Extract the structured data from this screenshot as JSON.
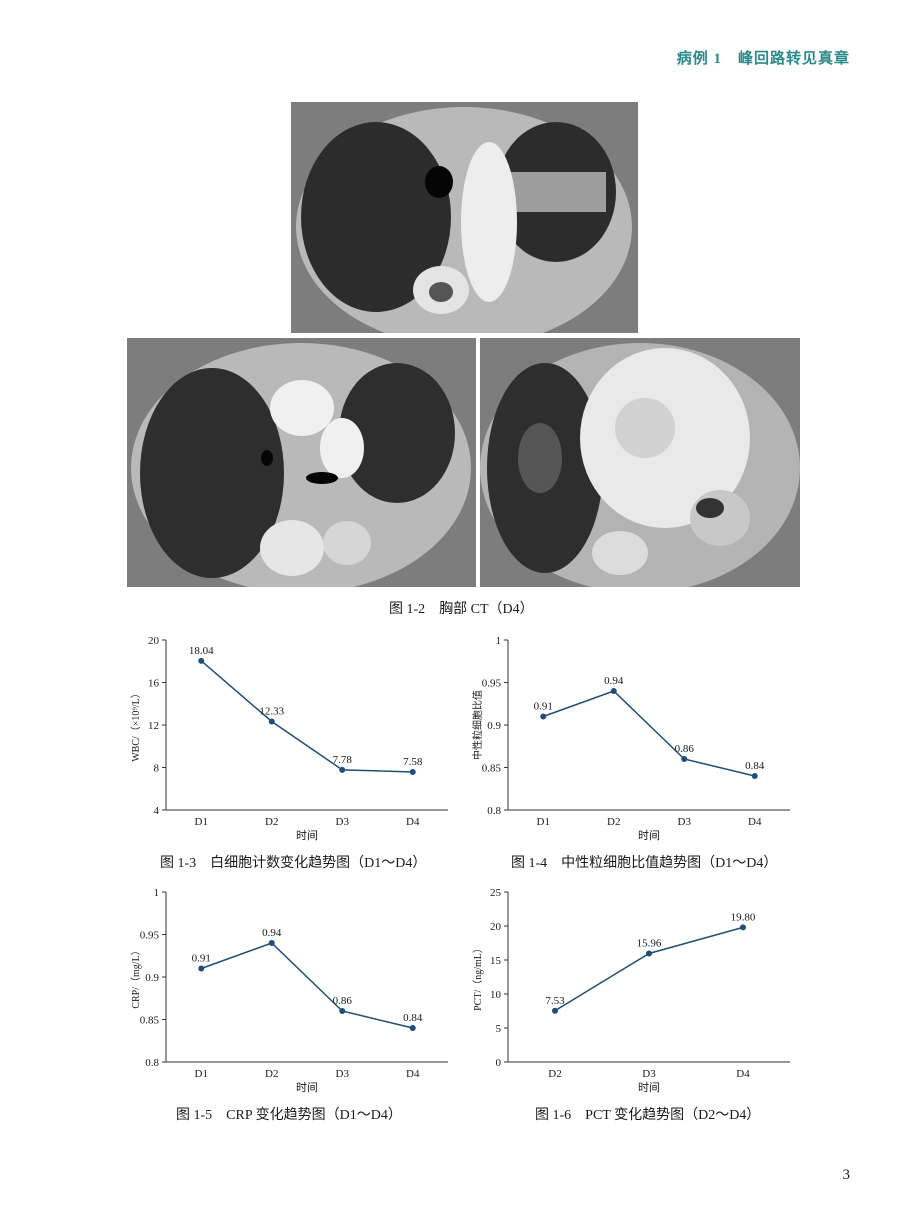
{
  "header": {
    "running_title": "病例 1　峰回路转见真章"
  },
  "figures": {
    "ct_caption": "图 1-2　胸部 CT（D4）",
    "ct_images": [
      "胸部 CT 上肺",
      "胸部 CT 中肺",
      "胸部 CT 下肺"
    ]
  },
  "captions": {
    "fig3": "图 1-3　白细胞计数变化趋势图（D1～D4）",
    "fig4": "图 1-4　中性粒细胞比值趋势图（D1～D4）",
    "fig5": "图 1-5　CRP 变化趋势图（D1～D4）",
    "fig6": "图 1-6　PCT 变化趋势图（D2～D4）"
  },
  "chart_data": [
    {
      "id": "wbc",
      "type": "line",
      "categories": [
        "D1",
        "D2",
        "D3",
        "D4"
      ],
      "values": [
        18.04,
        12.33,
        7.78,
        7.58
      ],
      "labels": [
        "18.04",
        "12.33",
        "7.78",
        "7.58"
      ],
      "xlabel": "时间",
      "ylabel": "WBC/（×10⁹/L）",
      "ylim": [
        4,
        20
      ],
      "yticks": [
        "4",
        "8",
        "12",
        "16",
        "20"
      ],
      "ytick_values": [
        4,
        8,
        12,
        16,
        20
      ],
      "color": "#1f4e79"
    },
    {
      "id": "neut",
      "type": "line",
      "categories": [
        "D1",
        "D2",
        "D3",
        "D4"
      ],
      "values": [
        0.91,
        0.94,
        0.86,
        0.84
      ],
      "labels": [
        "0.91",
        "0.94",
        "0.86",
        "0.84"
      ],
      "xlabel": "时间",
      "ylabel": "中性粒细胞比值",
      "ylim": [
        0.8,
        1
      ],
      "yticks": [
        "0.8",
        "0.85",
        "0.9",
        "0.95",
        "1"
      ],
      "ytick_values": [
        0.8,
        0.85,
        0.9,
        0.95,
        1
      ],
      "color": "#1f4e79"
    },
    {
      "id": "crp",
      "type": "line",
      "categories": [
        "D1",
        "D2",
        "D3",
        "D4"
      ],
      "values": [
        0.91,
        0.94,
        0.86,
        0.84
      ],
      "labels": [
        "0.91",
        "0.94",
        "0.86",
        "0.84"
      ],
      "xlabel": "时间",
      "ylabel": "CRP/（mg/L）",
      "ylim": [
        0.8,
        1
      ],
      "yticks": [
        "0.8",
        "0.85",
        "0.9",
        "0.95",
        "1"
      ],
      "ytick_values": [
        0.8,
        0.85,
        0.9,
        0.95,
        1
      ],
      "color": "#1f4e79"
    },
    {
      "id": "pct",
      "type": "line",
      "categories": [
        "D2",
        "D3",
        "D4"
      ],
      "values": [
        7.53,
        15.96,
        19.8
      ],
      "labels": [
        "7.53",
        "15.96",
        "19.80"
      ],
      "xlabel": "时间",
      "ylabel": "PCT/（ng/mL）",
      "ylim": [
        0,
        25
      ],
      "yticks": [
        "0",
        "5",
        "10",
        "15",
        "20",
        "25"
      ],
      "ytick_values": [
        0,
        5,
        10,
        15,
        20,
        25
      ],
      "color": "#1f4e79"
    }
  ],
  "footer": {
    "page_number": "3"
  }
}
